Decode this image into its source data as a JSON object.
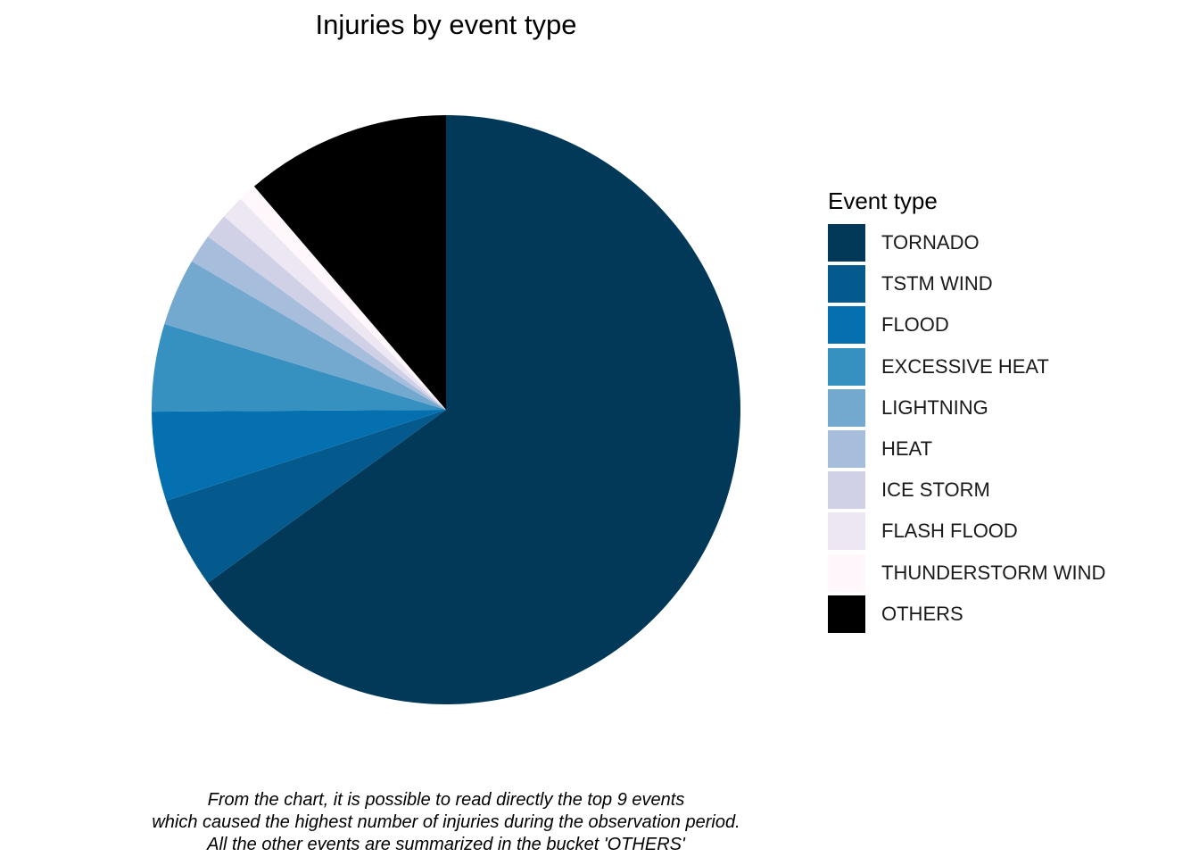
{
  "chart_data": {
    "type": "pie",
    "title": "Injuries by event type",
    "legend_title": "Event type",
    "legend_position": "right",
    "categories": [
      "TORNADO",
      "TSTM WIND",
      "FLOOD",
      "EXCESSIVE HEAT",
      "LIGHTNING",
      "HEAT",
      "ICE STORM",
      "FLASH FLOOD",
      "THUNDERSTORM WIND",
      "OTHERS"
    ],
    "values": [
      65.0,
      5.0,
      4.9,
      4.8,
      3.7,
      1.6,
      1.4,
      1.3,
      1.0,
      11.3
    ],
    "unit": "percent of injuries",
    "colors": [
      "#023858",
      "#045a8d",
      "#0570b0",
      "#3690c0",
      "#74a9cf",
      "#a6bddb",
      "#d0d1e6",
      "#ece7f2",
      "#fff7fb",
      "#000000"
    ],
    "caption": [
      "From the chart, it is possible to read directly the top 9 events",
      "which caused the highest number of injuries during the observation period.",
      "All the other events are summarized in the bucket 'OTHERS'"
    ]
  }
}
